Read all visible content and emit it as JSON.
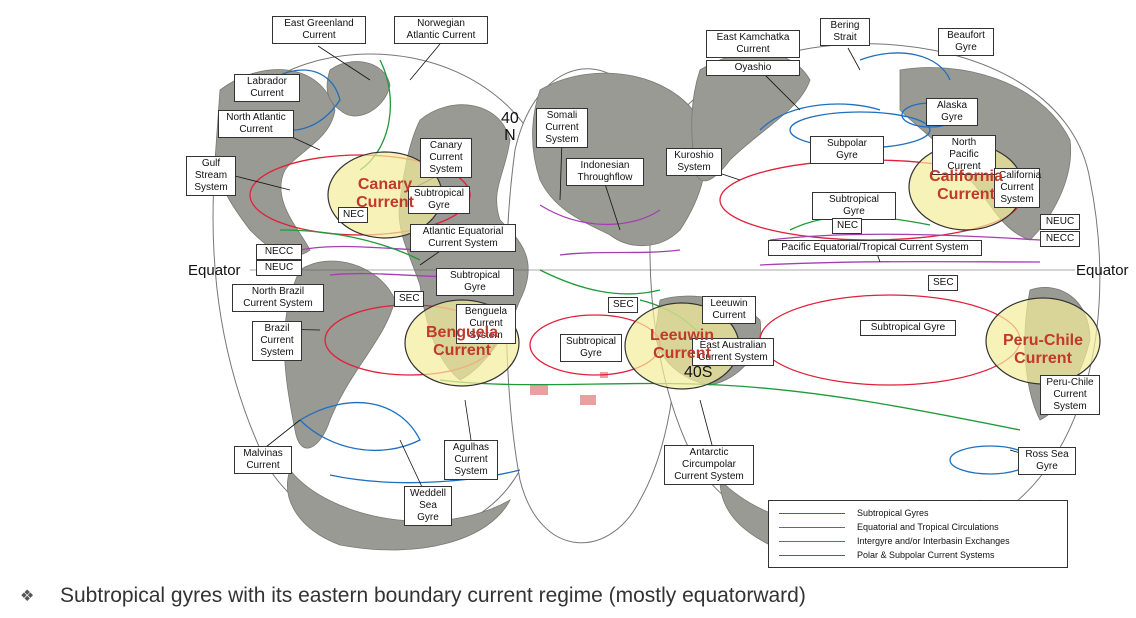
{
  "colors": {
    "subtropical": "#e0213a",
    "equatorial": "#a43fb3",
    "intergyre": "#1f9a3a",
    "polar": "#1f6fc0",
    "highlight_fill": "#f3ee9a",
    "highlight_stroke": "#333333",
    "ocean": "#ffffff",
    "land": "#9a9a94"
  },
  "labels": {
    "east_greenland": "East Greenland\nCurrent",
    "norwegian": "Norwegian\nAtlantic Current",
    "labrador": "Labrador\nCurrent",
    "north_atlantic": "North Atlantic\nCurrent",
    "gulf_stream": "Gulf\nStream\nSystem",
    "canary_system": "Canary\nCurrent\nSystem",
    "subtropical_gyre_atl": "Subtropical\nGyre",
    "nec_atl": "NEC",
    "atlantic_equatorial": "Atlantic Equatorial\nCurrent System",
    "necc_atl": "NECC",
    "neuc_atl": "NEUC",
    "north_brazil": "North Brazil\nCurrent System",
    "sec_atl": "SEC",
    "subtropical_gyre_satl": "Subtropical\nGyre",
    "benguela_system": "Benguela\nCurrent\nSystem",
    "brazil": "Brazil\nCurrent\nSystem",
    "malvinas": "Malvinas\nCurrent",
    "agulhas": "Agulhas\nCurrent\nSystem",
    "weddell": "Weddell\nSea\nGyre",
    "somali": "Somali\nCurrent\nSystem",
    "indonesian": "Indonesian\nThroughflow",
    "sec_ind": "SEC",
    "subtropical_gyre_ind": "Subtropical\nGyre",
    "leeuwin": "Leeuwin\nCurrent",
    "east_australian": "East Australian\nCurrent System",
    "kuroshio": "Kuroshio\nSystem",
    "east_kamchatka": "East Kamchatka\nCurrent",
    "oyashio": "Oyashio",
    "bering": "Bering\nStrait",
    "beaufort": "Beaufort\nGyre",
    "alaska": "Alaska\nGyre",
    "subpolar_gyre": "Subpolar Gyre",
    "north_pacific": "North Pacific\nCurrent",
    "california_system": "California\nCurrent\nSystem",
    "subtropical_gyre_npac": "Subtropical Gyre",
    "nec_pac": "NEC",
    "neuc_pac": "NEUC",
    "necc_pac": "NECC",
    "pacific_equatorial": "Pacific Equatorial/Tropical Current System",
    "sec_pac": "SEC",
    "subtropical_gyre_spac": "Subtropical Gyre",
    "peru_chile_system": "Peru-Chile\nCurrent\nSystem",
    "antarctic": "Antarctic\nCircumpolar\nCurrent System",
    "ross": "Ross Sea\nGyre"
  },
  "plain_text": {
    "equator_left": "Equator",
    "equator_right": "Equator",
    "lat_40n": "40\nN",
    "lat_40s": "40S"
  },
  "highlights": {
    "canary": "Canary\nCurrent",
    "benguela": "Benguela\nCurrent",
    "leeuwin": "Leeuwin\nCurrent",
    "california": "California\nCurrent",
    "peru_chile": "Peru-Chile\nCurrent"
  },
  "legend": [
    {
      "label": "Subtropical Gyres",
      "color": "#e0213a"
    },
    {
      "label": "Equatorial and Tropical Circulations",
      "color": "#a43fb3"
    },
    {
      "label": "Intergyre and/or Interbasin Exchanges",
      "color": "#1f9a3a"
    },
    {
      "label": "Polar & Subpolar Current Systems",
      "color": "#1f6fc0"
    }
  ],
  "caption": {
    "bullet_icon": "diamond-cluster-icon",
    "text": "Subtropical gyres with its eastern boundary current regime (mostly equatorward)"
  }
}
